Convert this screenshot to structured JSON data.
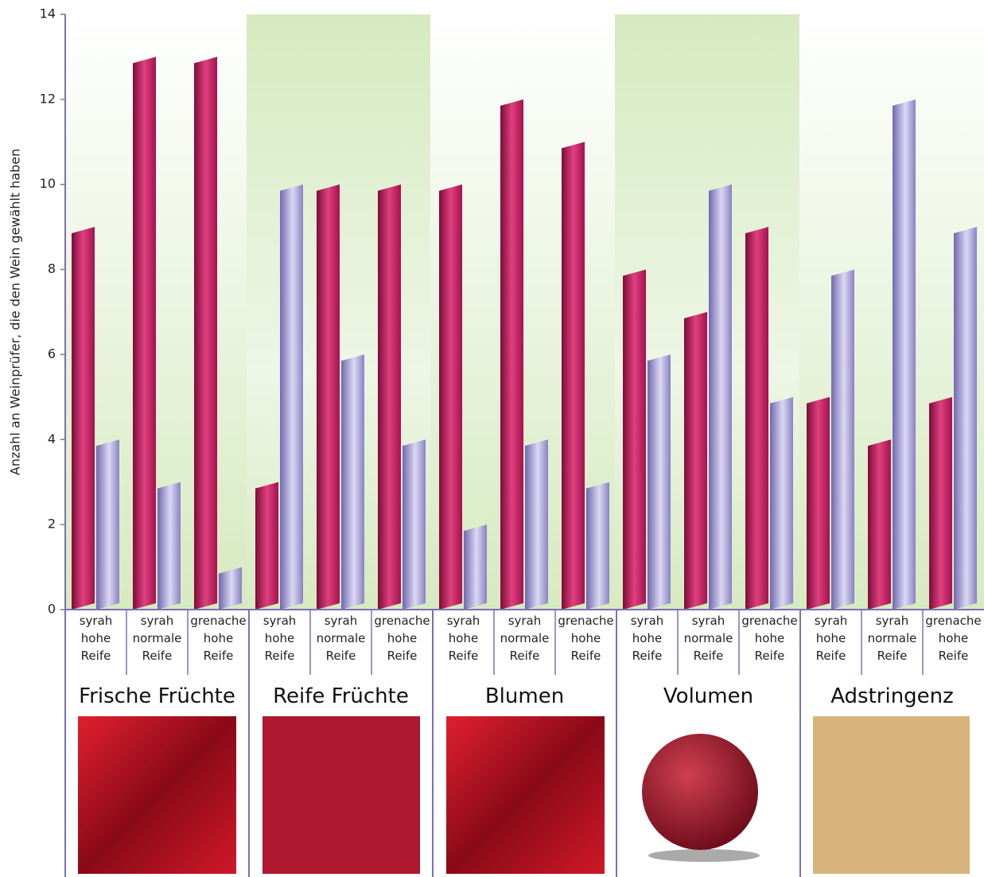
{
  "chart_data": {
    "type": "bar",
    "ylabel": "Anzahl an Weinprüfer, die den Wein gewählt haben",
    "groups": [
      "Frische Früchte",
      "Reife Früchte",
      "Blumen",
      "Volumen",
      "Adstringenz"
    ],
    "categories": [
      "syrah hohe Reife",
      "syrah normale Reife",
      "grenache hohe Reife",
      "syrah hohe Reife",
      "syrah normale Reife",
      "grenache hohe Reife",
      "syrah hohe Reife",
      "syrah normale Reife",
      "grenache hohe Reife",
      "syrah hohe Reife",
      "syrah normale Reife",
      "grenache hohe Reife",
      "syrah hohe Reife",
      "syrah normale Reife",
      "grenache hohe Reife"
    ],
    "series": [
      {
        "color": "#c8175e",
        "values": [
          9,
          13,
          13,
          3,
          10,
          10,
          10,
          12,
          11,
          8,
          7,
          9,
          5,
          4,
          5
        ]
      },
      {
        "color": "#9a92d0",
        "values": [
          4,
          3,
          1,
          10,
          6,
          4,
          2,
          4,
          3,
          6,
          10,
          5,
          8,
          12,
          9
        ]
      }
    ],
    "ylim": [
      0,
      14
    ],
    "yticks": [
      0,
      2,
      4,
      6,
      8,
      10,
      12,
      14
    ]
  }
}
